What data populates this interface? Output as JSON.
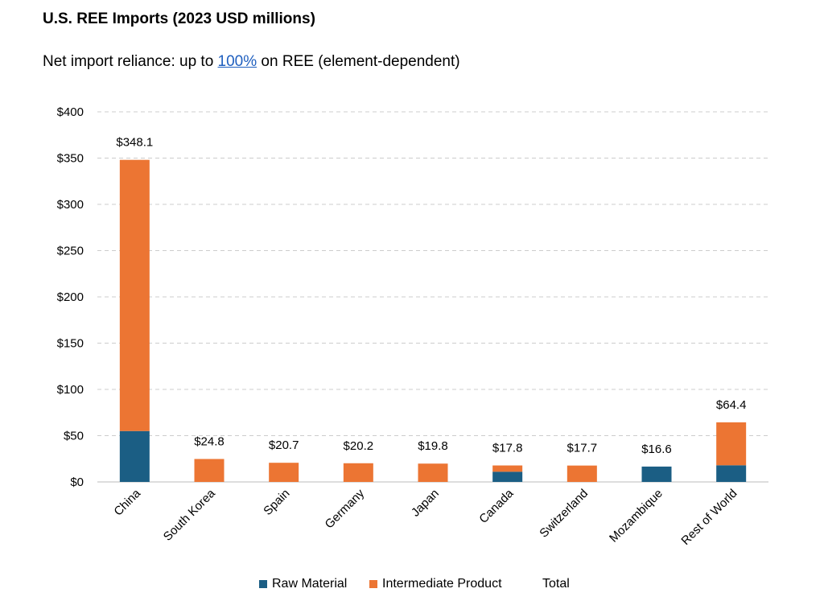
{
  "header": {
    "title": "U.S. REE Imports (2023 USD millions)",
    "subtitle_before": "Net import reliance: up to ",
    "subtitle_link": "100%",
    "subtitle_after": " on REE (element-dependent)"
  },
  "colors": {
    "raw": "#1b5e84",
    "intermediate": "#ec7533",
    "grid": "#cccccc",
    "axis": "#bbbbbb"
  },
  "chart_data": {
    "type": "bar",
    "stacked": true,
    "title": "U.S. REE Imports (2023 USD millions)",
    "xlabel": "",
    "ylabel": "",
    "ylim": [
      0,
      400
    ],
    "yticks": [
      0,
      50,
      100,
      150,
      200,
      250,
      300,
      350,
      400
    ],
    "ytick_labels": [
      "$0",
      "$50",
      "$100",
      "$150",
      "$200",
      "$250",
      "$300",
      "$350",
      "$400"
    ],
    "categories": [
      "China",
      "South Korea",
      "Spain",
      "Germany",
      "Japan",
      "Canada",
      "Switzerland",
      "Mozambique",
      "Rest of World"
    ],
    "series": [
      {
        "name": "Raw Material",
        "values": [
          55,
          0,
          0,
          0,
          0,
          11,
          0,
          16.6,
          18
        ]
      },
      {
        "name": "Intermediate Product",
        "values": [
          293.1,
          24.8,
          20.7,
          20.2,
          19.8,
          6.8,
          17.7,
          0,
          46.4
        ]
      }
    ],
    "totals": [
      348.1,
      24.8,
      20.7,
      20.2,
      19.8,
      17.8,
      17.7,
      16.6,
      64.4
    ],
    "total_labels": [
      "$348.1",
      "$24.8",
      "$20.7",
      "$20.2",
      "$19.8",
      "$17.8",
      "$17.7",
      "$16.6",
      "$64.4"
    ],
    "grid": true,
    "legend": {
      "position": "bottom",
      "entries": [
        "Raw Material",
        "Intermediate Product",
        "Total"
      ]
    }
  }
}
